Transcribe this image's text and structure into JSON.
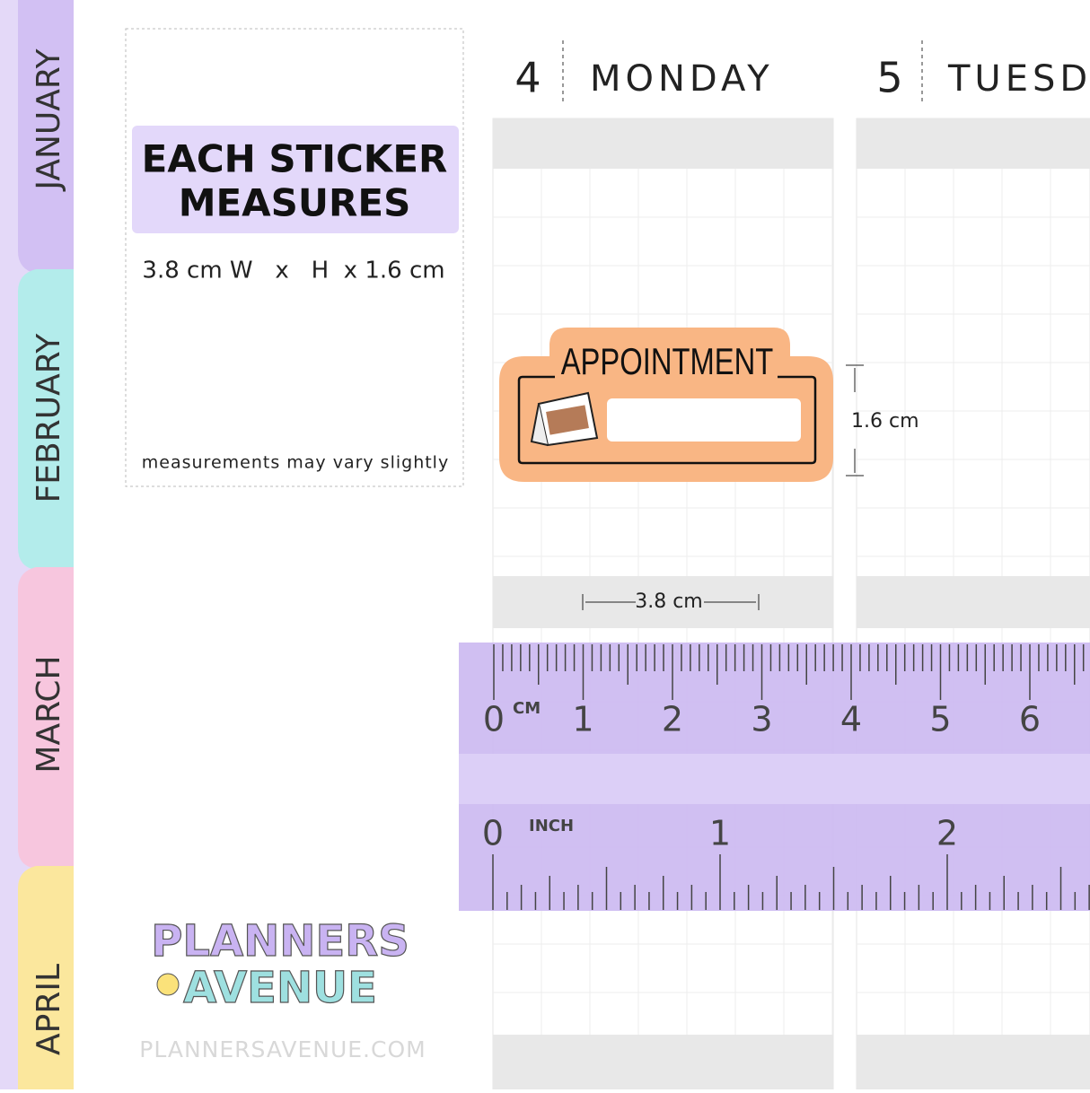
{
  "tabs": [
    "JANUARY",
    "FEBRUARY",
    "MARCH",
    "APRIL"
  ],
  "card": {
    "title_line1": "EACH STICKER",
    "title_line2": "MEASURES",
    "size": "3.8 cm W   x   H  x 1.6 cm",
    "note": "measurements may vary slightly"
  },
  "days": [
    {
      "number": "4",
      "name": "MONDAY"
    },
    {
      "number": "5",
      "name": "TUESD"
    }
  ],
  "sticker": {
    "label": "APPOINTMENT"
  },
  "dimensions": {
    "height": "1.6 cm",
    "width": "3.8 cm"
  },
  "ruler": {
    "cm_unit": "CM",
    "cm_labels": [
      "0",
      "1",
      "2",
      "3",
      "4",
      "5",
      "6"
    ],
    "inch_unit": "INCH",
    "inch_labels": [
      "0",
      "1",
      "2"
    ]
  },
  "logo": {
    "line1": "PLANNERS",
    "line2": "AVENUE"
  },
  "footer": {
    "url": "PLANNERSAVENUE.COM"
  }
}
